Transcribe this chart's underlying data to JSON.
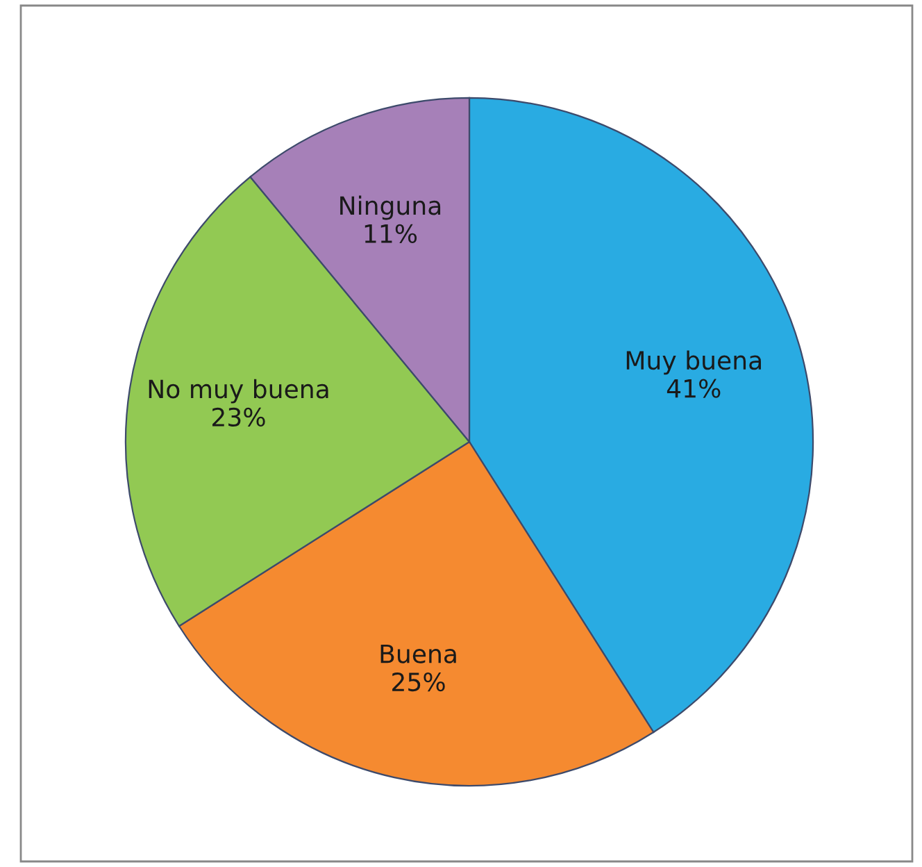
{
  "chart_data": {
    "type": "pie",
    "categories": [
      "Muy buena",
      "Buena",
      "No muy buena",
      "Ninguna"
    ],
    "values": [
      41,
      25,
      23,
      11
    ],
    "colors": [
      "#29abe2",
      "#f58a30",
      "#92c953",
      "#a680b8"
    ],
    "value_labels": [
      "41%",
      "25%",
      "23%",
      "11%"
    ]
  }
}
